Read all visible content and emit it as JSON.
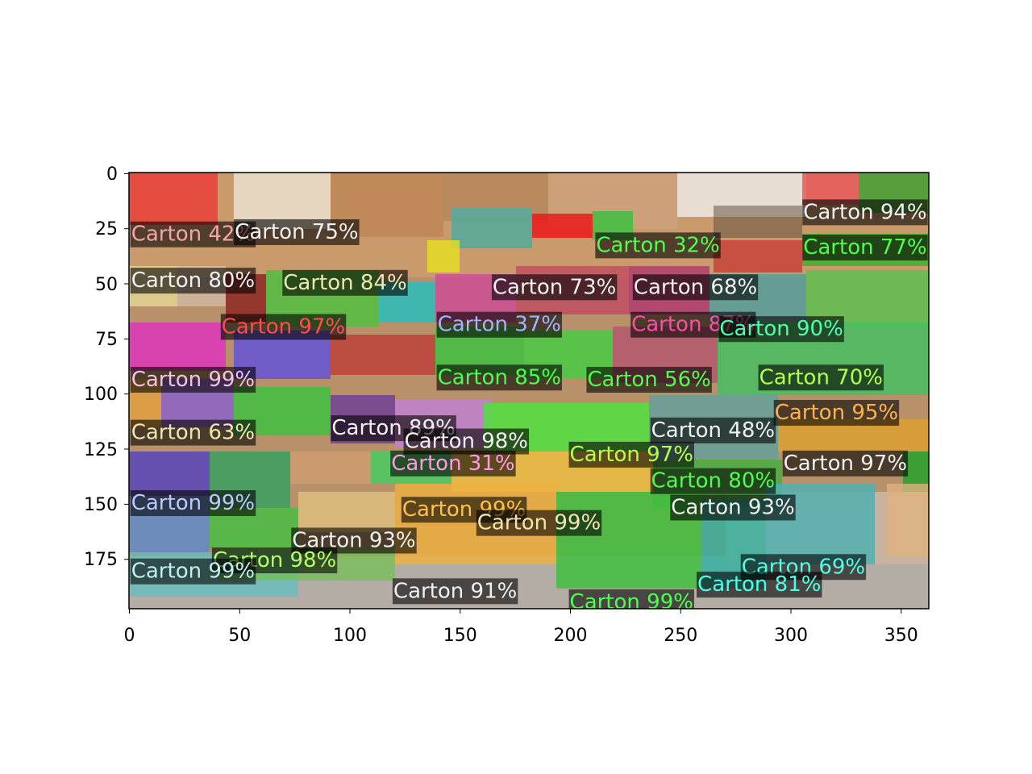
{
  "figure": {
    "x_ticks": [
      "0",
      "50",
      "100",
      "150",
      "200",
      "250",
      "300",
      "350"
    ],
    "y_ticks": [
      "0",
      "25",
      "50",
      "75",
      "100",
      "125",
      "150",
      "175"
    ],
    "x_range": [
      0,
      363
    ],
    "y_range": [
      198,
      0
    ]
  },
  "detections": [
    {
      "label": "Carton 42%",
      "color": "#f4a6a6",
      "x": 1,
      "y": 31,
      "w": 62,
      "h": 30
    },
    {
      "label": "Carton 75%",
      "color": "#f0f0f0",
      "x": 48,
      "y": 30,
      "w": 45,
      "h": 35
    },
    {
      "label": "Carton 80%",
      "color": "#f0f0f0",
      "x": 1,
      "y": 52,
      "w": 60,
      "h": 28
    },
    {
      "label": "Carton 84%",
      "color": "#f0e6b0",
      "x": 70,
      "y": 53,
      "w": 55,
      "h": 28
    },
    {
      "label": "Carton 73%",
      "color": "#f0f0f0",
      "x": 165,
      "y": 55,
      "w": 55,
      "h": 25
    },
    {
      "label": "Carton 68%",
      "color": "#f0f0f0",
      "x": 229,
      "y": 55,
      "w": 65,
      "h": 28
    },
    {
      "label": "Carton 94%",
      "color": "#f0f0f0",
      "x": 306,
      "y": 21,
      "w": 57,
      "h": 25
    },
    {
      "label": "Carton 77%",
      "color": "#4dff4d",
      "x": 306,
      "y": 37,
      "w": 57,
      "h": 25
    },
    {
      "label": "Carton 32%",
      "color": "#4dff4d",
      "x": 212,
      "y": 36,
      "w": 50,
      "h": 22
    },
    {
      "label": "Carton 97%",
      "color": "#ff4d4d",
      "x": 42,
      "y": 73,
      "w": 55,
      "h": 30
    },
    {
      "label": "Carton 37%",
      "color": "#a0b4ff",
      "x": 140,
      "y": 72,
      "w": 65,
      "h": 25
    },
    {
      "label": "Carton 87%",
      "color": "#ff4da6",
      "x": 228,
      "y": 72,
      "w": 60,
      "h": 25
    },
    {
      "label": "Carton 90%",
      "color": "#4dffb3",
      "x": 268,
      "y": 74,
      "w": 90,
      "h": 30
    },
    {
      "label": "Carton 99%",
      "color": "#f4c0e6",
      "x": 1,
      "y": 97,
      "w": 68,
      "h": 28
    },
    {
      "label": "Carton 85%",
      "color": "#4dff4d",
      "x": 140,
      "y": 96,
      "w": 70,
      "h": 28
    },
    {
      "label": "Carton 56%",
      "color": "#4dff4d",
      "x": 208,
      "y": 97,
      "w": 70,
      "h": 30
    },
    {
      "label": "Carton 70%",
      "color": "#b3ff4d",
      "x": 286,
      "y": 96,
      "w": 77,
      "h": 28
    },
    {
      "label": "Carton 89%",
      "color": "#f0f0f0",
      "x": 92,
      "y": 119,
      "w": 68,
      "h": 28
    },
    {
      "label": "Carton 63%",
      "color": "#f0e6b0",
      "x": 1,
      "y": 121,
      "w": 70,
      "h": 28
    },
    {
      "label": "Carton 98%",
      "color": "#f0f0f0",
      "x": 125,
      "y": 125,
      "w": 70,
      "h": 28
    },
    {
      "label": "Carton 97%",
      "color": "#b3ff4d",
      "x": 200,
      "y": 131,
      "w": 38,
      "h": 25
    },
    {
      "label": "Carton 48%",
      "color": "#f0f0f0",
      "x": 237,
      "y": 120,
      "w": 72,
      "h": 30
    },
    {
      "label": "Carton 95%",
      "color": "#ffb34d",
      "x": 293,
      "y": 112,
      "w": 70,
      "h": 28
    },
    {
      "label": "Carton 31%",
      "color": "#ff99e6",
      "x": 119,
      "y": 135,
      "w": 65,
      "h": 25
    },
    {
      "label": "Carton 97%",
      "color": "#f0f0f0",
      "x": 297,
      "y": 135,
      "w": 66,
      "h": 25
    },
    {
      "label": "Carton 80%",
      "color": "#4dff4d",
      "x": 237,
      "y": 143,
      "w": 68,
      "h": 30
    },
    {
      "label": "Carton 93%",
      "color": "#f0f0f0",
      "x": 246,
      "y": 155,
      "w": 75,
      "h": 28
    },
    {
      "label": "Carton 99%",
      "color": "#ffc04d",
      "x": 124,
      "y": 156,
      "w": 75,
      "h": 28
    },
    {
      "label": "Carton 99%",
      "color": "#f0e6b0",
      "x": 158,
      "y": 162,
      "w": 80,
      "h": 30
    },
    {
      "label": "Carton 93%",
      "color": "#f0f0f0",
      "x": 74,
      "y": 170,
      "w": 71,
      "h": 28
    },
    {
      "label": "Carton 98%",
      "color": "#b3ff66",
      "x": 38,
      "y": 179,
      "w": 78,
      "h": 28
    },
    {
      "label": "Carton 99%",
      "color": "#c0c8ff",
      "x": 1,
      "y": 153,
      "w": 72,
      "h": 30
    },
    {
      "label": "Carton 99%",
      "color": "#c0f0f0",
      "x": 1,
      "y": 184,
      "w": 78,
      "h": 28
    },
    {
      "label": "Carton 91%",
      "color": "#f0f0f0",
      "x": 120,
      "y": 193,
      "w": 80,
      "h": 28
    },
    {
      "label": "Carton 69%",
      "color": "#4dffe6",
      "x": 278,
      "y": 182,
      "w": 85,
      "h": 28
    },
    {
      "label": "Carton 81%",
      "color": "#4dffe6",
      "x": 258,
      "y": 190,
      "w": 85,
      "h": 28
    },
    {
      "label": "Carton 99%",
      "color": "#4dff4d",
      "x": 200,
      "y": 198,
      "w": 80,
      "h": 20
    }
  ]
}
